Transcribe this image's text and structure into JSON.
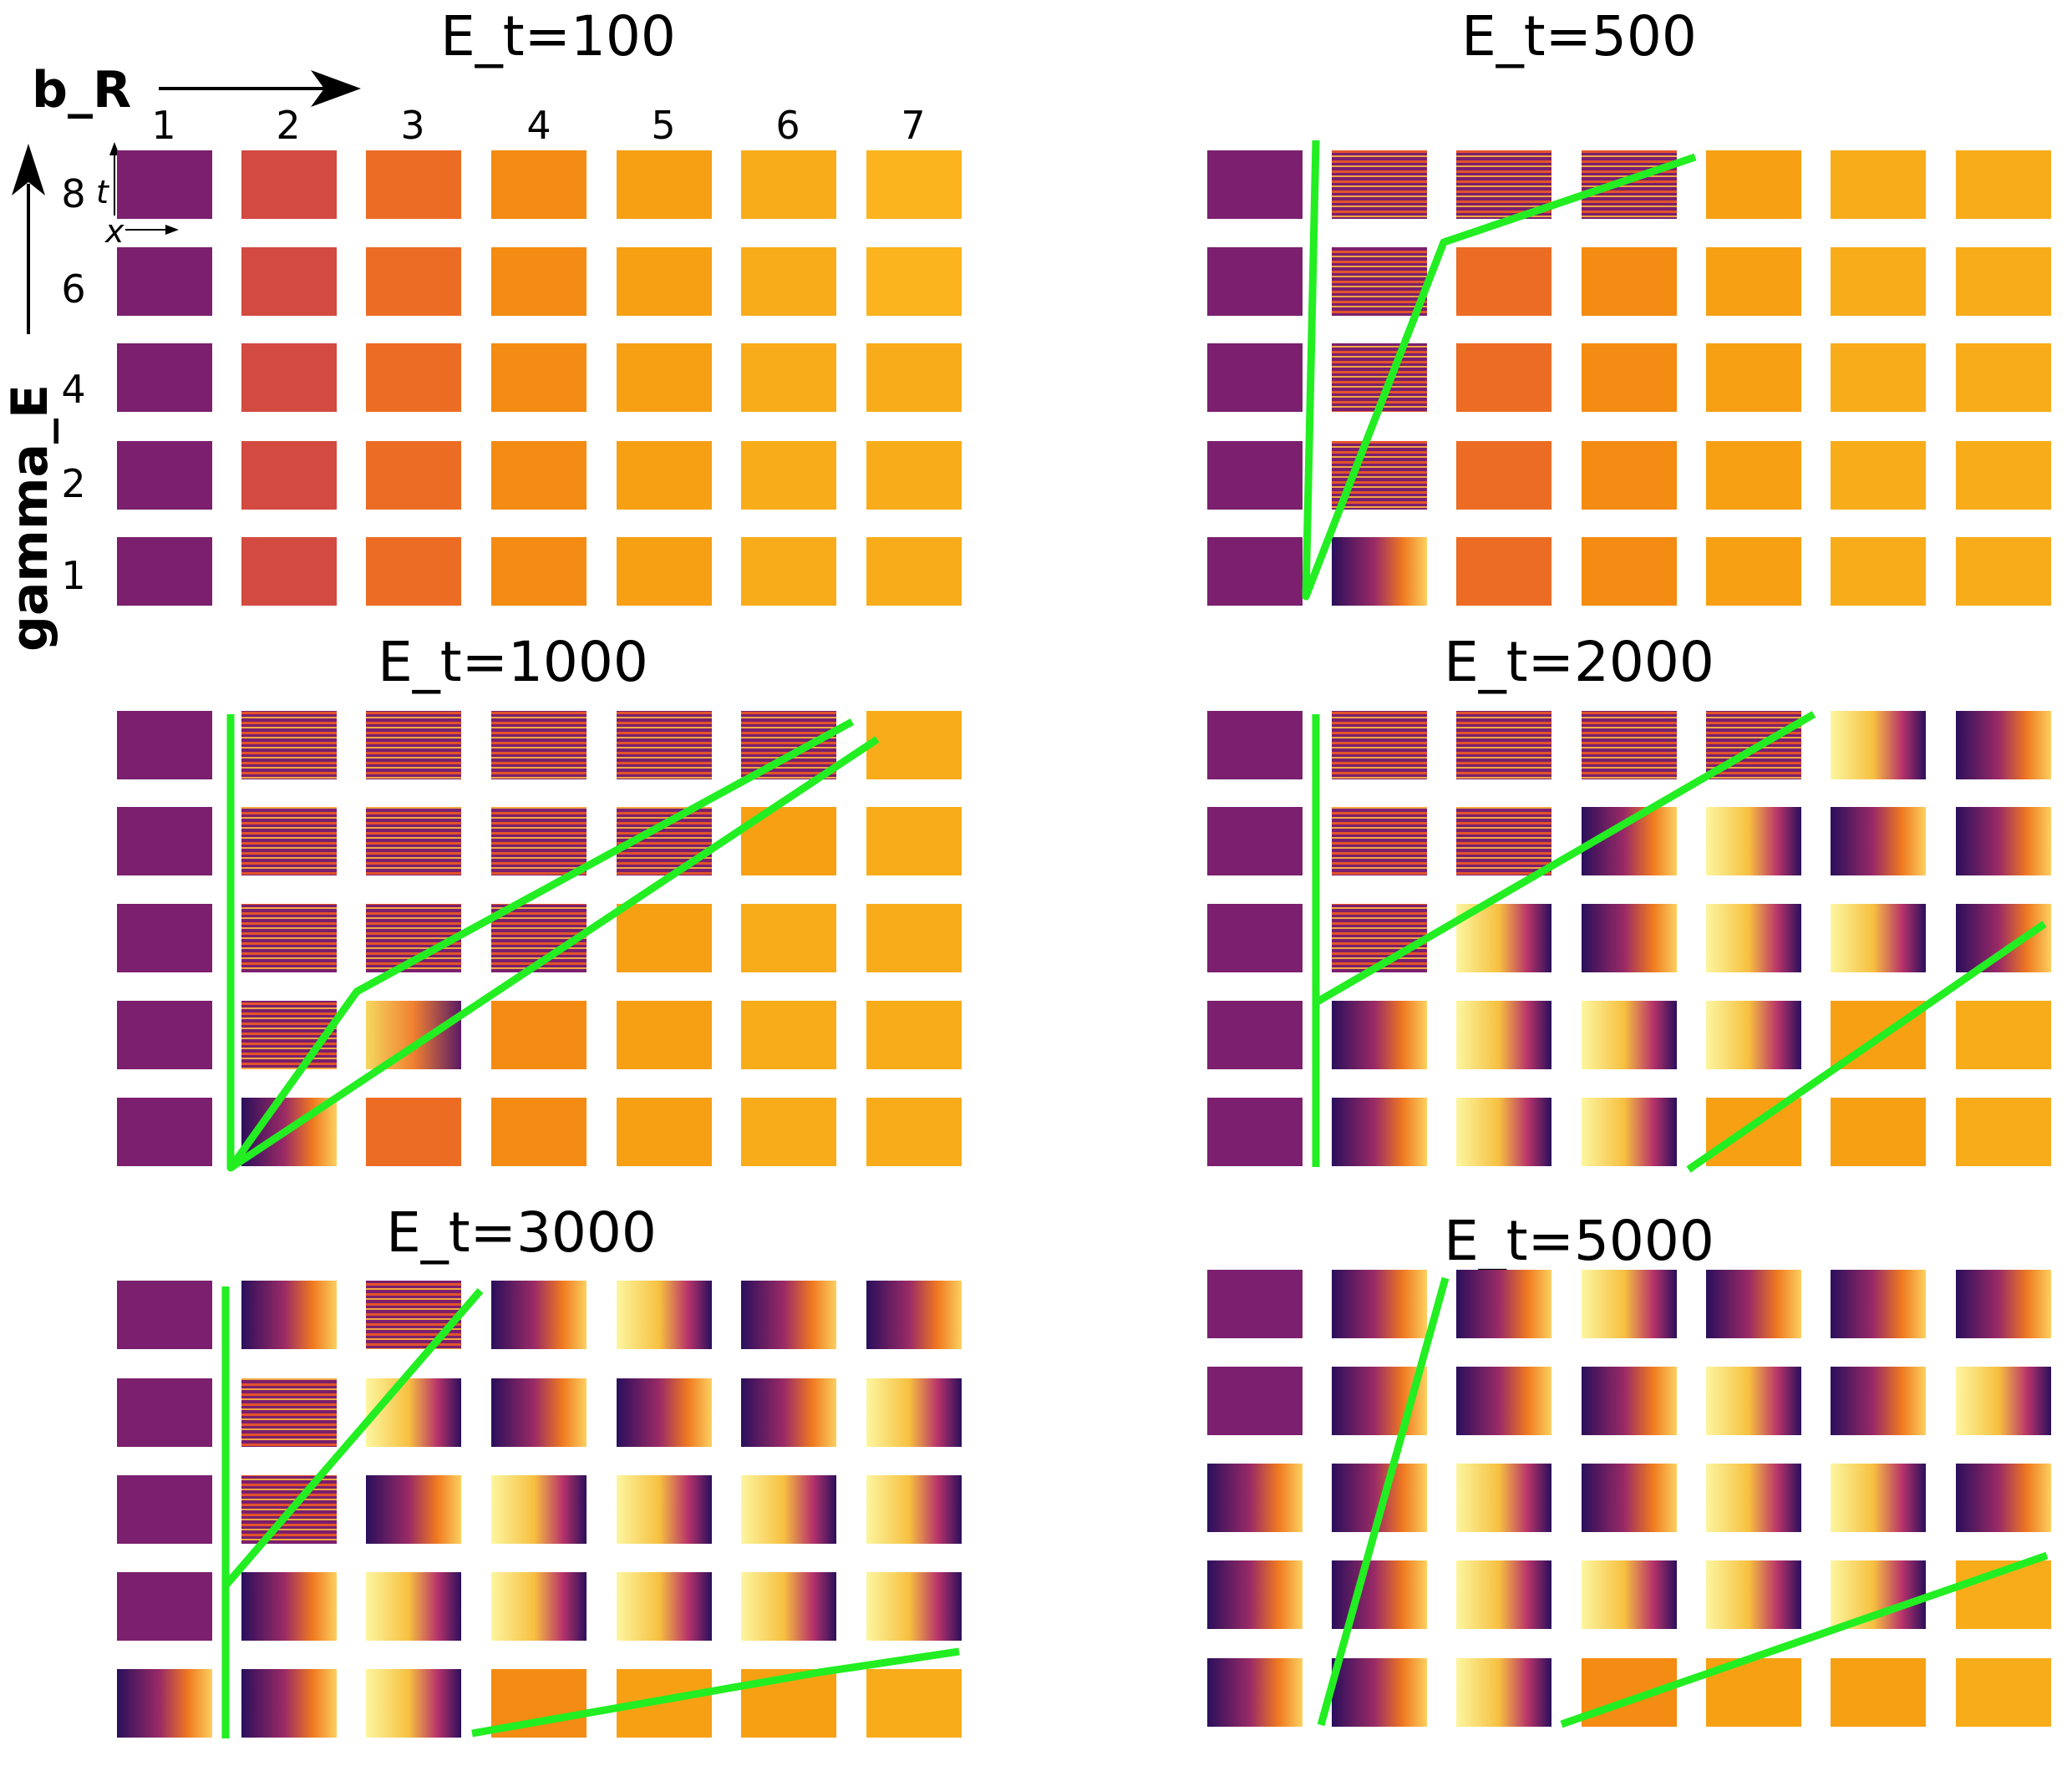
{
  "axis_labels": {
    "x_label": "b_R",
    "y_label": "gamma_E",
    "inset_t": "t",
    "inset_x": "x"
  },
  "column_ticks": [
    "1",
    "2",
    "3",
    "4",
    "5",
    "6",
    "7"
  ],
  "row_ticks": [
    "8",
    "6",
    "4",
    "2",
    "1"
  ],
  "colors": {
    "boundary_line": "#22ee22",
    "c0": "#7b1f6e",
    "c1": "#d24a40",
    "c2": "#ec6c24",
    "c3": "#f48b12",
    "c4": "#f7a014",
    "c5": "#f9ac1a",
    "c6": "#fbb41e",
    "dark": "#2a0f5c",
    "light": "#fcf6a0"
  },
  "panels": [
    {
      "title": "E_t=100",
      "grid": [
        [
          "c0",
          "c1",
          "c2",
          "c3",
          "c4",
          "c5",
          "c6"
        ],
        [
          "c0",
          "c1",
          "c2",
          "c3",
          "c4",
          "c5",
          "c6"
        ],
        [
          "c0",
          "c1",
          "c2",
          "c3",
          "c4",
          "c5",
          "c5"
        ],
        [
          "c0",
          "c1",
          "c2",
          "c3",
          "c4",
          "c5",
          "c5"
        ],
        [
          "c0",
          "c1",
          "c2",
          "c3",
          "c4",
          "c5",
          "c5"
        ]
      ]
    },
    {
      "title": "E_t=500",
      "grid": [
        [
          "c0",
          "hs",
          "hs",
          "hs",
          "c4",
          "c5",
          "c5"
        ],
        [
          "c0",
          "hs",
          "c2",
          "c3",
          "c4",
          "c5",
          "c5"
        ],
        [
          "c0",
          "hs",
          "c2",
          "c3",
          "c4",
          "c5",
          "c5"
        ],
        [
          "c0",
          "hs",
          "c2",
          "c3",
          "c4",
          "c5",
          "c5"
        ],
        [
          "c0",
          "fd",
          "c2",
          "c3",
          "c4",
          "c5",
          "c5"
        ]
      ]
    },
    {
      "title": "E_t=1000",
      "grid": [
        [
          "c0",
          "hs",
          "hs",
          "hs",
          "hs",
          "hs",
          "c5"
        ],
        [
          "c0",
          "hs",
          "hs",
          "hs",
          "hs",
          "c4",
          "c5"
        ],
        [
          "c0",
          "hs",
          "hs",
          "hs",
          "c4",
          "c5",
          "c5"
        ],
        [
          "c0",
          "hs",
          "fr",
          "c3",
          "c4",
          "c5",
          "c5"
        ],
        [
          "c0",
          "fd",
          "c2",
          "c3",
          "c4",
          "c5",
          "c5"
        ]
      ]
    },
    {
      "title": "E_t=2000",
      "grid": [
        [
          "c0",
          "hs",
          "hs",
          "hs",
          "hs",
          "fl",
          "fd"
        ],
        [
          "c0",
          "hs",
          "hs",
          "fd",
          "fl",
          "fd",
          "fd"
        ],
        [
          "c0",
          "hs",
          "fl",
          "fd",
          "fl",
          "fl",
          "fd"
        ],
        [
          "c0",
          "fd",
          "fl",
          "fl",
          "fl",
          "c4",
          "c5"
        ],
        [
          "c0",
          "fd",
          "fl",
          "fl",
          "c4",
          "c4",
          "c5"
        ]
      ]
    },
    {
      "title": "E_t=3000",
      "grid": [
        [
          "c0",
          "fd",
          "hs",
          "fd",
          "fl",
          "fd",
          "fd"
        ],
        [
          "c0",
          "hs",
          "fl",
          "fd",
          "fd",
          "fd",
          "fl"
        ],
        [
          "c0",
          "hs",
          "fd",
          "fl",
          "fl",
          "fl",
          "fl"
        ],
        [
          "c0",
          "fd",
          "fl",
          "fl",
          "fl",
          "fl",
          "fl"
        ],
        [
          "fd",
          "fd",
          "fl",
          "c3",
          "c4",
          "c4",
          "c5"
        ]
      ]
    },
    {
      "title": "E_t=5000",
      "grid": [
        [
          "c0",
          "fd",
          "fd",
          "fl",
          "fd",
          "fd",
          "fd"
        ],
        [
          "c0",
          "fd",
          "fd",
          "fd",
          "fl",
          "fd",
          "fl"
        ],
        [
          "fd",
          "fd",
          "fl",
          "fd",
          "fl",
          "fl",
          "fd"
        ],
        [
          "fd",
          "fd",
          "fl",
          "fl",
          "fl",
          "fl",
          "c5"
        ],
        [
          "fd",
          "fd",
          "fl",
          "c3",
          "c4",
          "c4",
          "c5"
        ]
      ]
    }
  ]
}
